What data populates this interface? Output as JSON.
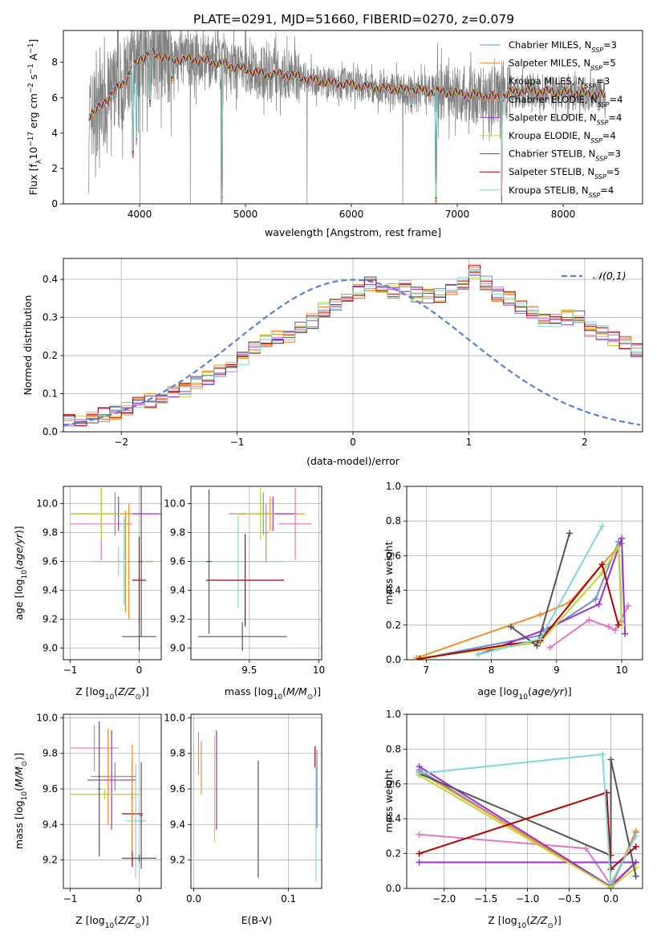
{
  "title": "PLATE=0291, MJD=51660, FIBERID=0270, z=0.079",
  "colors": {
    "series": [
      "#6b8fd6",
      "#f28e2b",
      "#e377c2",
      "#ff7f0e",
      "#9b30d0",
      "#bcd930",
      "#555555",
      "#b20000",
      "#7fd6d6"
    ],
    "data": "#808080",
    "gauss": "#5a80d6"
  },
  "legend": {
    "entries": [
      "Chabrier MILES, N_SSP=3",
      "Salpeter MILES, N_SSP=5",
      "Kroupa MILES, N_SSP=3",
      "Chabrier ELODIE, N_SSP=4",
      "Salpeter ELODIE, N_SSP=4",
      "Kroupa ELODIE, N_SSP=4",
      "Chabrier STELIB, N_SSP=3",
      "Salpeter STELIB, N_SSP=5",
      "Kroupa STELIB, N_SSP=4"
    ],
    "gauss_label": "𝒩(0,1)"
  },
  "chart_data": [
    {
      "id": "spectrum",
      "type": "line",
      "xlabel": "wavelength [Angstrom, rest frame]",
      "ylabel": "Flux [f_λ 10^-17 erg cm^-2 s^-1 A^-1]",
      "xlim": [
        3280,
        8750
      ],
      "ylim": [
        0,
        9.8
      ],
      "xticks": [
        4000,
        5000,
        6000,
        7000,
        8000
      ],
      "yticks": [
        0,
        2,
        4,
        6,
        8
      ],
      "model_continuum": [
        [
          3520,
          5.0
        ],
        [
          3600,
          5.3
        ],
        [
          3700,
          6.0
        ],
        [
          3800,
          6.6
        ],
        [
          3850,
          6.9
        ],
        [
          3900,
          7.3
        ],
        [
          4000,
          8.2
        ],
        [
          4100,
          8.5
        ],
        [
          4200,
          8.4
        ],
        [
          4300,
          8.1
        ],
        [
          4400,
          8.2
        ],
        [
          4500,
          8.15
        ],
        [
          4600,
          8.1
        ],
        [
          4700,
          8.0
        ],
        [
          4800,
          7.9
        ],
        [
          4900,
          7.75
        ],
        [
          5000,
          7.6
        ],
        [
          5100,
          7.45
        ],
        [
          5200,
          7.3
        ],
        [
          5300,
          7.35
        ],
        [
          5400,
          7.3
        ],
        [
          5500,
          7.2
        ],
        [
          5600,
          7.05
        ],
        [
          5700,
          6.95
        ],
        [
          5800,
          6.85
        ],
        [
          5900,
          6.8
        ],
        [
          6000,
          6.75
        ],
        [
          6100,
          6.65
        ],
        [
          6200,
          6.6
        ],
        [
          6300,
          6.55
        ],
        [
          6400,
          6.5
        ],
        [
          6500,
          6.45
        ],
        [
          6600,
          6.45
        ],
        [
          6700,
          6.4
        ],
        [
          6800,
          6.35
        ],
        [
          6900,
          6.3
        ],
        [
          7000,
          6.25
        ],
        [
          7100,
          6.2
        ],
        [
          7200,
          6.15
        ],
        [
          7300,
          6.1
        ],
        [
          7400,
          6.0
        ],
        [
          7500,
          6.3
        ],
        [
          7600,
          6.4
        ],
        [
          7700,
          6.4
        ],
        [
          7800,
          6.35
        ],
        [
          7900,
          6.35
        ],
        [
          8000,
          6.3
        ],
        [
          8100,
          6.3
        ],
        [
          8200,
          6.25
        ],
        [
          8300,
          6.2
        ],
        [
          8400,
          6.1
        ]
      ],
      "model_dips": [
        [
          3935,
          2.6
        ],
        [
          3970,
          3.3
        ],
        [
          4101,
          5.5
        ],
        [
          4305,
          6.8
        ],
        [
          4780,
          0.0
        ],
        [
          6563,
          5.2
        ],
        [
          6800,
          0.0
        ],
        [
          7420,
          0.0
        ]
      ],
      "observed_range": [
        3520,
        8400
      ]
    },
    {
      "id": "residuals",
      "type": "line",
      "xlabel": "(data-model)/error",
      "ylabel": "Normed distribution",
      "xlim": [
        -2.5,
        2.5
      ],
      "ylim": [
        0,
        0.455
      ],
      "xticks": [
        -2,
        -1,
        0,
        1,
        2
      ],
      "xticklabels": [
        "−2",
        "−1",
        "0",
        "1",
        "2"
      ],
      "yticks": [
        0.0,
        0.1,
        0.2,
        0.3,
        0.4
      ],
      "bin_width": 0.1,
      "bin_start": -2.5,
      "hist_base": [
        0.035,
        0.03,
        0.04,
        0.045,
        0.05,
        0.06,
        0.075,
        0.08,
        0.085,
        0.1,
        0.11,
        0.13,
        0.14,
        0.155,
        0.165,
        0.19,
        0.22,
        0.24,
        0.25,
        0.255,
        0.27,
        0.29,
        0.32,
        0.33,
        0.35,
        0.37,
        0.39,
        0.38,
        0.37,
        0.38,
        0.36,
        0.355,
        0.36,
        0.37,
        0.39,
        0.42,
        0.39,
        0.36,
        0.35,
        0.33,
        0.31,
        0.295,
        0.29,
        0.3,
        0.3,
        0.27,
        0.26,
        0.245,
        0.23,
        0.215,
        0.21,
        0.2,
        0.19,
        0.18,
        0.165,
        0.15,
        0.135,
        0.125,
        0.12,
        0.11,
        0.1,
        0.09,
        0.085,
        0.075,
        0.065,
        0.06,
        0.055,
        0.05,
        0.045,
        0.04,
        0.035,
        0.03,
        0.025,
        0.02,
        0.015
      ],
      "series_names": [
        "Chabrier MILES",
        "Salpeter MILES",
        "Kroupa MILES",
        "Chabrier ELODIE",
        "Salpeter ELODIE",
        "Kroupa ELODIE",
        "Chabrier STELIB",
        "Salpeter STELIB",
        "Kroupa STELIB"
      ]
    },
    {
      "id": "z_age",
      "type": "scatter",
      "xlabel": "Z [log10(Z/Z⊙)]",
      "ylabel": "age [log10(age/yr)]",
      "xlim": [
        -1.1,
        0.32
      ],
      "ylim": [
        8.92,
        10.12
      ],
      "xticks": [
        -1,
        0
      ],
      "xticklabels": [
        "−1",
        "0"
      ],
      "yticks": [
        9.0,
        9.2,
        9.4,
        9.6,
        9.8,
        10.0
      ],
      "points": [
        {
          "x": -0.35,
          "xerr": 0.65,
          "y": 9.93,
          "yerr": 0.15,
          "c": 0
        },
        {
          "x": -0.55,
          "xerr": 0.45,
          "y": 9.93,
          "yerr": 0.12,
          "c": 1
        },
        {
          "x": -0.55,
          "xerr": 0.45,
          "y": 9.86,
          "yerr": 0.25,
          "c": 2
        },
        {
          "x": -0.3,
          "xerr": 0.7,
          "y": 9.93,
          "yerr": 0.12,
          "c": 4
        },
        {
          "x": -0.55,
          "xerr": 0.45,
          "y": 9.93,
          "yerr": 0.18,
          "c": 5
        },
        {
          "x": -0.2,
          "xerr": 0.4,
          "y": 9.6,
          "yerr": 0.35,
          "c": 3
        },
        {
          "x": -0.3,
          "xerr": 0.4,
          "y": 9.6,
          "yerr": 0.1,
          "c": 8
        },
        {
          "x": 0.0,
          "xerr": 0.1,
          "y": 9.47,
          "yerr": 0.3,
          "c": 7
        },
        {
          "x": -0.22,
          "xerr": 0.02,
          "y": 9.6,
          "yerr": 0.3,
          "c": 8
        },
        {
          "x": 0.0,
          "xerr": 0.25,
          "y": 9.08,
          "yerr": 0.1,
          "c": 6
        },
        {
          "x": 0.03,
          "xerr": 0.02,
          "y": 9.6,
          "yerr": 0.52,
          "c": 6
        },
        {
          "x": -0.15,
          "xerr": 0.02,
          "y": 9.6,
          "yerr": 0.4,
          "c": 1
        }
      ]
    },
    {
      "id": "mass_age",
      "type": "scatter",
      "xlabel": "mass [log10(M/M⊙)]",
      "ylabel": "",
      "xlim": [
        9.08,
        10.02
      ],
      "ylim": [
        8.92,
        10.12
      ],
      "xticks": [
        9.5,
        10.0
      ],
      "yticks": [
        9.0,
        9.2,
        9.4,
        9.6,
        9.8,
        10.0
      ],
      "points": [
        {
          "x": 9.6,
          "xerr": 0.25,
          "y": 9.93,
          "yerr": 0.15,
          "c": 0
        },
        {
          "x": 9.65,
          "xerr": 0.25,
          "y": 9.93,
          "yerr": 0.12,
          "c": 1
        },
        {
          "x": 9.83,
          "xerr": 0.12,
          "y": 9.86,
          "yerr": 0.25,
          "c": 2
        },
        {
          "x": 9.67,
          "xerr": 0.15,
          "y": 9.93,
          "yerr": 0.12,
          "c": 4
        },
        {
          "x": 9.58,
          "xerr": 0.1,
          "y": 9.93,
          "yerr": 0.18,
          "c": 5
        },
        {
          "x": 9.42,
          "xerr": 0.33,
          "y": 9.6,
          "yerr": 0.32,
          "c": 8
        },
        {
          "x": 9.47,
          "xerr": 0.28,
          "y": 9.47,
          "yerr": 0.32,
          "c": 7
        },
        {
          "x": 9.45,
          "xerr": 0.32,
          "y": 9.08,
          "yerr": 0.1,
          "c": 6
        },
        {
          "x": 9.21,
          "xerr": 0.02,
          "y": 9.6,
          "yerr": 0.5,
          "c": 6
        },
        {
          "x": 9.62,
          "xerr": 0.02,
          "y": 9.8,
          "yerr": 0.2,
          "c": 3
        }
      ]
    },
    {
      "id": "age_weight",
      "type": "line",
      "xlabel": "age [log10(age/yr)]",
      "ylabel": "mass weight",
      "xlim": [
        6.7,
        10.32
      ],
      "ylim": [
        0,
        1.0
      ],
      "xticks": [
        7,
        8,
        9,
        10
      ],
      "yticks": [
        0.0,
        0.2,
        0.4,
        0.6,
        0.8,
        1.0
      ],
      "series": [
        {
          "c": 0,
          "points": [
            [
              6.9,
              0.005
            ],
            [
              8.75,
              0.14
            ],
            [
              9.6,
              0.35
            ],
            [
              9.95,
              0.68
            ],
            [
              10.0,
              0.22
            ]
          ]
        },
        {
          "c": 1,
          "points": [
            [
              6.85,
              0.01
            ],
            [
              8.75,
              0.26
            ],
            [
              9.2,
              0.33
            ],
            [
              9.7,
              0.55
            ],
            [
              10.0,
              0.67
            ]
          ]
        },
        {
          "c": 2,
          "points": [
            [
              8.9,
              0.07
            ],
            [
              9.5,
              0.23
            ],
            [
              9.8,
              0.19
            ],
            [
              9.9,
              0.17
            ],
            [
              10.1,
              0.31
            ]
          ]
        },
        {
          "c": 4,
          "points": [
            [
              7.8,
              0.03
            ],
            [
              8.8,
              0.17
            ],
            [
              9.65,
              0.32
            ],
            [
              10.0,
              0.7
            ],
            [
              10.05,
              0.15
            ]
          ]
        },
        {
          "c": 5,
          "points": [
            [
              6.9,
              0.01
            ],
            [
              8.75,
              0.1
            ],
            [
              9.7,
              0.5
            ],
            [
              9.95,
              0.65
            ],
            [
              10.0,
              0.2
            ]
          ]
        },
        {
          "c": 6,
          "points": [
            [
              8.3,
              0.19
            ],
            [
              8.7,
              0.08
            ],
            [
              9.2,
              0.73
            ]
          ]
        },
        {
          "c": 7,
          "points": [
            [
              6.9,
              0.005
            ],
            [
              8.3,
              0.09
            ],
            [
              8.75,
              0.11
            ],
            [
              9.7,
              0.55
            ],
            [
              9.95,
              0.2
            ]
          ]
        },
        {
          "c": 8,
          "points": [
            [
              7.8,
              0.03
            ],
            [
              8.75,
              0.12
            ],
            [
              9.7,
              0.77
            ]
          ]
        }
      ]
    },
    {
      "id": "z_mass",
      "type": "scatter",
      "xlabel": "Z [log10(Z/Z⊙)]",
      "ylabel": "mass [log10(M/M⊙)]",
      "xlim": [
        -1.1,
        0.32
      ],
      "ylim": [
        9.04,
        10.02
      ],
      "xticks": [
        -1,
        0
      ],
      "xticklabels": [
        "−1",
        "0"
      ],
      "yticks": [
        9.2,
        9.4,
        9.6,
        9.8,
        10.0
      ],
      "points": [
        {
          "x": -0.35,
          "xerr": 0.3,
          "y": 9.67,
          "yerr": 0.08,
          "c": 0
        },
        {
          "x": -0.5,
          "xerr": 0.5,
          "y": 9.57,
          "yerr": 0.02,
          "c": 1
        },
        {
          "x": -0.65,
          "xerr": 0.35,
          "y": 9.83,
          "yerr": 0.13,
          "c": 2
        },
        {
          "x": -0.4,
          "xerr": 0.35,
          "y": 9.65,
          "yerr": 0.28,
          "c": 4
        },
        {
          "x": -0.5,
          "xerr": 0.5,
          "y": 9.57,
          "yerr": 0.03,
          "c": 5
        },
        {
          "x": -0.45,
          "xerr": 0.25,
          "y": 9.67,
          "yerr": 0.27,
          "c": 3
        },
        {
          "x": -0.58,
          "xerr": 0.02,
          "y": 9.6,
          "yerr": 0.38,
          "c": 6
        },
        {
          "x": -0.1,
          "xerr": 0.15,
          "y": 9.46,
          "yerr": 0.3,
          "c": 7
        },
        {
          "x": -0.05,
          "xerr": 0.15,
          "y": 9.42,
          "yerr": 0.32,
          "c": 8
        },
        {
          "x": 0.0,
          "xerr": 0.25,
          "y": 9.21,
          "yerr": 0.02,
          "c": 6
        },
        {
          "x": 0.03,
          "xerr": 0.02,
          "y": 9.45,
          "yerr": 0.3,
          "c": 6
        },
        {
          "x": -0.1,
          "xerr": 0.02,
          "y": 9.55,
          "yerr": 0.3,
          "c": 1
        }
      ]
    },
    {
      "id": "ebv_mass",
      "type": "scatter",
      "xlabel": "E(B-V)",
      "ylabel": "",
      "xlim": [
        -0.003,
        0.135
      ],
      "ylim": [
        9.04,
        10.02
      ],
      "xticks": [
        0.0,
        0.1
      ],
      "yticks": [
        9.2,
        9.4,
        9.6,
        9.8,
        10.0
      ],
      "points": [
        {
          "x": 0.005,
          "xerr": 0.0,
          "y": 9.8,
          "yerr": 0.12,
          "c": 2
        },
        {
          "x": 0.008,
          "xerr": 0.0,
          "y": 9.72,
          "yerr": 0.15,
          "c": 1
        },
        {
          "x": 0.022,
          "xerr": 0.0,
          "y": 9.6,
          "yerr": 0.3,
          "c": 5
        },
        {
          "x": 0.024,
          "xerr": 0.0,
          "y": 9.65,
          "yerr": 0.28,
          "c": 4
        },
        {
          "x": 0.068,
          "xerr": 0.0,
          "y": 9.43,
          "yerr": 0.33,
          "c": 6
        },
        {
          "x": 0.128,
          "xerr": 0.0,
          "y": 9.78,
          "yerr": 0.06,
          "c": 7
        },
        {
          "x": 0.129,
          "xerr": 0.0,
          "y": 9.4,
          "yerr": 0.32,
          "c": 8
        },
        {
          "x": 0.13,
          "xerr": 0.0,
          "y": 9.6,
          "yerr": 0.22,
          "c": 0
        }
      ]
    },
    {
      "id": "z_weight",
      "type": "line",
      "xlabel": "Z [log10(Z/Z⊙)]",
      "ylabel": "mass weight",
      "xlim": [
        -2.45,
        0.38
      ],
      "ylim": [
        0,
        1.0
      ],
      "xticks": [
        -2.0,
        -1.5,
        -1.0,
        -0.5,
        0.0
      ],
      "xticklabels": [
        "−2.0",
        "−1.5",
        "−1.0",
        "−0.5",
        "0.0"
      ],
      "yticks": [
        0.0,
        0.2,
        0.4,
        0.6,
        0.8,
        1.0
      ],
      "series": [
        {
          "c": 0,
          "points": [
            [
              -2.3,
              0.68
            ],
            [
              0.0,
              0.005
            ],
            [
              0.3,
              0.32
            ]
          ]
        },
        {
          "c": 1,
          "points": [
            [
              -2.3,
              0.67
            ],
            [
              0.0,
              0.01
            ],
            [
              0.3,
              0.33
            ]
          ]
        },
        {
          "c": 2,
          "points": [
            [
              -2.3,
              0.31
            ],
            [
              -0.3,
              0.23
            ],
            [
              0.0,
              0.02
            ],
            [
              0.3,
              0.15
            ]
          ]
        },
        {
          "c": 4,
          "points": [
            [
              -2.3,
              0.7
            ],
            [
              0.0,
              0.01
            ],
            [
              0.3,
              0.15
            ],
            [
              -2.3,
              0.15
            ]
          ]
        },
        {
          "c": 5,
          "points": [
            [
              -2.3,
              0.65
            ],
            [
              0.0,
              0.005
            ],
            [
              0.3,
              0.12
            ]
          ]
        },
        {
          "c": 6,
          "points": [
            [
              -2.3,
              0.66
            ],
            [
              0.0,
              0.19
            ],
            [
              0.0,
              0.74
            ],
            [
              0.3,
              0.07
            ]
          ]
        },
        {
          "c": 7,
          "points": [
            [
              -2.3,
              0.2
            ],
            [
              -0.05,
              0.55
            ],
            [
              0.0,
              0.11
            ],
            [
              0.3,
              0.24
            ]
          ]
        },
        {
          "c": 8,
          "points": [
            [
              -2.3,
              0.66
            ],
            [
              -0.1,
              0.77
            ],
            [
              0.0,
              0.03
            ],
            [
              0.3,
              0.3
            ]
          ]
        }
      ]
    }
  ]
}
